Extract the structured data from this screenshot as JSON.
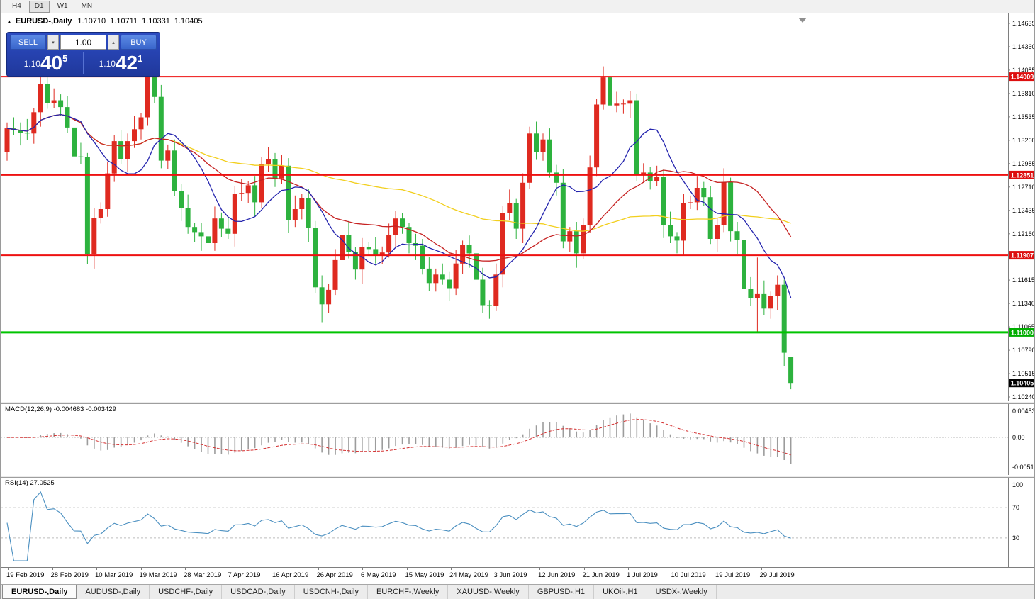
{
  "toolbar": {
    "timeframes": [
      {
        "label": "H4",
        "active": false
      },
      {
        "label": "D1",
        "active": true
      },
      {
        "label": "W1",
        "active": false
      },
      {
        "label": "MN",
        "active": false
      }
    ]
  },
  "chart_header": {
    "collapse_marker": "▲",
    "symbol": "EURUSD-,Daily",
    "open": "1.10710",
    "high": "1.10711",
    "low": "1.10331",
    "close": "1.10405"
  },
  "trade_panel": {
    "sell_label": "SELL",
    "buy_label": "BUY",
    "volume": "1.00",
    "spinner_down": "▾",
    "spinner_up": "▴",
    "sell_price": {
      "prefix": "1.10",
      "big": "40",
      "sup": "5"
    },
    "buy_price": {
      "prefix": "1.10",
      "big": "42",
      "sup": "1"
    }
  },
  "price_axis": {
    "ticks": [
      "1.14635",
      "1.14360",
      "1.14085",
      "1.13810",
      "1.13535",
      "1.13260",
      "1.12985",
      "1.12710",
      "1.12435",
      "1.12160",
      "1.11885",
      "1.11615",
      "1.11340",
      "1.11065",
      "1.10790",
      "1.10515",
      "1.10240"
    ]
  },
  "levels": {
    "hlines": [
      {
        "price": 1.14009,
        "label": "1.14009",
        "color": "#ee1111",
        "badge_bg": "#dd0f0f",
        "text_color": "#ffffff",
        "thickness": 2
      },
      {
        "price": 1.12851,
        "label": "1.12851",
        "color": "#ee1111",
        "badge_bg": "#dd0f0f",
        "text_color": "#ffffff",
        "thickness": 2
      },
      {
        "price": 1.11907,
        "label": "1.11907",
        "color": "#ee1111",
        "badge_bg": "#dd0f0f",
        "text_color": "#ffffff",
        "thickness": 2
      },
      {
        "price": 1.11,
        "label": "1.11000",
        "color": "#00c400",
        "badge_bg": "#00ae00",
        "text_color": "#ffffff",
        "thickness": 3
      }
    ],
    "current_price": {
      "value": 1.10405,
      "label": "1.10405",
      "badge_bg": "#000000",
      "text_color": "#ffffff"
    }
  },
  "chart_data": {
    "type": "candlestick",
    "symbol": "EURUSD",
    "timeframe": "Daily",
    "price_min": 1.1024,
    "price_max": 1.14635,
    "up_color": "#df2a20",
    "down_color": "#2db23e",
    "moving_averages": [
      {
        "period": 60,
        "color": "#f2cf1d"
      },
      {
        "period": 25,
        "color": "#c62222"
      },
      {
        "period": 10,
        "color": "#2424ae"
      }
    ],
    "candles": [
      [
        1.1312,
        1.1347,
        1.1302,
        1.134
      ],
      [
        1.134,
        1.1353,
        1.1332,
        1.1338
      ],
      [
        1.1338,
        1.1347,
        1.132,
        1.1335
      ],
      [
        1.1335,
        1.1351,
        1.1326,
        1.1334
      ],
      [
        1.1334,
        1.1364,
        1.1322,
        1.1359
      ],
      [
        1.1359,
        1.1403,
        1.1342,
        1.1392
      ],
      [
        1.1392,
        1.14,
        1.1363,
        1.137
      ],
      [
        1.137,
        1.1387,
        1.1364,
        1.1373
      ],
      [
        1.1373,
        1.138,
        1.1355,
        1.1365
      ],
      [
        1.1365,
        1.1378,
        1.1335,
        1.1341
      ],
      [
        1.1341,
        1.135,
        1.1292,
        1.1307
      ],
      [
        1.1307,
        1.1323,
        1.1298,
        1.1306
      ],
      [
        1.1306,
        1.1311,
        1.118,
        1.1192
      ],
      [
        1.1192,
        1.1246,
        1.1175,
        1.1235
      ],
      [
        1.1235,
        1.1253,
        1.1228,
        1.1245
      ],
      [
        1.1245,
        1.1301,
        1.1236,
        1.1287
      ],
      [
        1.1287,
        1.1332,
        1.1277,
        1.1325
      ],
      [
        1.1325,
        1.1338,
        1.1298,
        1.1304
      ],
      [
        1.1304,
        1.1334,
        1.1289,
        1.1325
      ],
      [
        1.1325,
        1.1355,
        1.1317,
        1.1339
      ],
      [
        1.1339,
        1.1358,
        1.1327,
        1.1353
      ],
      [
        1.1353,
        1.1448,
        1.1343,
        1.1415
      ],
      [
        1.1415,
        1.1423,
        1.137,
        1.1377
      ],
      [
        1.1377,
        1.1391,
        1.1293,
        1.1302
      ],
      [
        1.1302,
        1.1321,
        1.1292,
        1.1314
      ],
      [
        1.1314,
        1.1327,
        1.126,
        1.1266
      ],
      [
        1.1266,
        1.1275,
        1.1231,
        1.1246
      ],
      [
        1.1246,
        1.1262,
        1.1216,
        1.1224
      ],
      [
        1.1224,
        1.1229,
        1.1206,
        1.1218
      ],
      [
        1.1218,
        1.1229,
        1.1196,
        1.1213
      ],
      [
        1.1213,
        1.1221,
        1.1198,
        1.1205
      ],
      [
        1.1205,
        1.1248,
        1.1196,
        1.1234
      ],
      [
        1.1234,
        1.1241,
        1.1212,
        1.1222
      ],
      [
        1.1222,
        1.1235,
        1.121,
        1.1216
      ],
      [
        1.1216,
        1.1272,
        1.1201,
        1.1263
      ],
      [
        1.1263,
        1.128,
        1.1255,
        1.1264
      ],
      [
        1.1264,
        1.1278,
        1.1252,
        1.1273
      ],
      [
        1.1273,
        1.1284,
        1.1236,
        1.1253
      ],
      [
        1.1253,
        1.1306,
        1.1246,
        1.1298
      ],
      [
        1.1298,
        1.1318,
        1.1289,
        1.1304
      ],
      [
        1.1304,
        1.1311,
        1.1271,
        1.1281
      ],
      [
        1.1281,
        1.1309,
        1.1275,
        1.1296
      ],
      [
        1.1296,
        1.1305,
        1.1217,
        1.1232
      ],
      [
        1.1232,
        1.1261,
        1.1224,
        1.1245
      ],
      [
        1.1245,
        1.1263,
        1.1233,
        1.1258
      ],
      [
        1.1258,
        1.1269,
        1.1206,
        1.1223
      ],
      [
        1.1223,
        1.1231,
        1.1146,
        1.1153
      ],
      [
        1.1153,
        1.1167,
        1.1112,
        1.1133
      ],
      [
        1.1133,
        1.1157,
        1.1123,
        1.115
      ],
      [
        1.115,
        1.1198,
        1.1144,
        1.1185
      ],
      [
        1.1185,
        1.1224,
        1.117,
        1.1215
      ],
      [
        1.1215,
        1.1231,
        1.1187,
        1.1195
      ],
      [
        1.1195,
        1.12,
        1.1162,
        1.1174
      ],
      [
        1.1174,
        1.1211,
        1.1157,
        1.12
      ],
      [
        1.12,
        1.1206,
        1.1191,
        1.1198
      ],
      [
        1.1198,
        1.1212,
        1.1181,
        1.119
      ],
      [
        1.119,
        1.1201,
        1.118,
        1.1194
      ],
      [
        1.1194,
        1.1228,
        1.1188,
        1.1215
      ],
      [
        1.1215,
        1.1243,
        1.12,
        1.1234
      ],
      [
        1.1234,
        1.124,
        1.1216,
        1.1224
      ],
      [
        1.1224,
        1.1229,
        1.1193,
        1.1205
      ],
      [
        1.1205,
        1.1216,
        1.1185,
        1.1202
      ],
      [
        1.1202,
        1.121,
        1.1168,
        1.1175
      ],
      [
        1.1175,
        1.1189,
        1.1149,
        1.1158
      ],
      [
        1.1158,
        1.1175,
        1.1148,
        1.1168
      ],
      [
        1.1168,
        1.1181,
        1.1156,
        1.1162
      ],
      [
        1.1162,
        1.1171,
        1.1137,
        1.1152
      ],
      [
        1.1152,
        1.1197,
        1.1144,
        1.1181
      ],
      [
        1.1181,
        1.1208,
        1.1169,
        1.1203
      ],
      [
        1.1203,
        1.1214,
        1.1176,
        1.1193
      ],
      [
        1.1193,
        1.1201,
        1.1155,
        1.1162
      ],
      [
        1.1162,
        1.1176,
        1.1123,
        1.1132
      ],
      [
        1.1132,
        1.1138,
        1.1116,
        1.1131
      ],
      [
        1.1131,
        1.1181,
        1.1125,
        1.1168
      ],
      [
        1.1168,
        1.1249,
        1.1153,
        1.124
      ],
      [
        1.124,
        1.1268,
        1.1232,
        1.1252
      ],
      [
        1.1252,
        1.1257,
        1.121,
        1.1222
      ],
      [
        1.1222,
        1.1287,
        1.1205,
        1.1276
      ],
      [
        1.1276,
        1.1342,
        1.1269,
        1.1334
      ],
      [
        1.1334,
        1.1348,
        1.1303,
        1.1312
      ],
      [
        1.1312,
        1.1334,
        1.1302,
        1.1327
      ],
      [
        1.1327,
        1.134,
        1.1282,
        1.1288
      ],
      [
        1.1288,
        1.1297,
        1.1261,
        1.1276
      ],
      [
        1.1276,
        1.1292,
        1.1199,
        1.1207
      ],
      [
        1.1207,
        1.1224,
        1.1195,
        1.1219
      ],
      [
        1.1219,
        1.123,
        1.1176,
        1.1193
      ],
      [
        1.1193,
        1.1234,
        1.1186,
        1.1226
      ],
      [
        1.1226,
        1.1308,
        1.1217,
        1.1294
      ],
      [
        1.1294,
        1.1375,
        1.1284,
        1.1368
      ],
      [
        1.1368,
        1.1413,
        1.1362,
        1.14
      ],
      [
        1.14,
        1.1409,
        1.1352,
        1.1367
      ],
      [
        1.1367,
        1.1383,
        1.1359,
        1.1369
      ],
      [
        1.1369,
        1.1374,
        1.1357,
        1.1369
      ],
      [
        1.1369,
        1.1384,
        1.1352,
        1.1373
      ],
      [
        1.1373,
        1.1381,
        1.1278,
        1.1285
      ],
      [
        1.1285,
        1.1299,
        1.1276,
        1.1288
      ],
      [
        1.1288,
        1.1295,
        1.1268,
        1.1278
      ],
      [
        1.1278,
        1.1296,
        1.1272,
        1.1283
      ],
      [
        1.1283,
        1.1292,
        1.1211,
        1.1226
      ],
      [
        1.1226,
        1.1242,
        1.1205,
        1.1213
      ],
      [
        1.1213,
        1.1218,
        1.1193,
        1.1208
      ],
      [
        1.1208,
        1.1263,
        1.1191,
        1.1252
      ],
      [
        1.1252,
        1.1261,
        1.1245,
        1.1253
      ],
      [
        1.1253,
        1.1284,
        1.1244,
        1.127
      ],
      [
        1.127,
        1.1277,
        1.1249,
        1.1259
      ],
      [
        1.1259,
        1.1272,
        1.1204,
        1.121
      ],
      [
        1.121,
        1.1235,
        1.1195,
        1.1226
      ],
      [
        1.1226,
        1.1293,
        1.1218,
        1.1277
      ],
      [
        1.1277,
        1.1282,
        1.1207,
        1.1219
      ],
      [
        1.1219,
        1.123,
        1.1192,
        1.1209
      ],
      [
        1.1209,
        1.1217,
        1.1144,
        1.1151
      ],
      [
        1.1151,
        1.1165,
        1.1131,
        1.114
      ],
      [
        1.114,
        1.1188,
        1.1101,
        1.1145
      ],
      [
        1.1145,
        1.1161,
        1.112,
        1.1128
      ],
      [
        1.1128,
        1.1148,
        1.1116,
        1.1143
      ],
      [
        1.1143,
        1.1167,
        1.1126,
        1.1156
      ],
      [
        1.1156,
        1.1162,
        1.106,
        1.1076
      ],
      [
        1.1071,
        1.10711,
        1.10331,
        1.10405
      ]
    ],
    "x_labels": [
      "19 Feb 2019",
      "28 Feb 2019",
      "10 Mar 2019",
      "19 Mar 2019",
      "28 Mar 2019",
      "7 Apr 2019",
      "16 Apr 2019",
      "26 Apr 2019",
      "6 May 2019",
      "15 May 2019",
      "24 May 2019",
      "3 Jun 2019",
      "12 Jun 2019",
      "21 Jun 2019",
      "1 Jul 2019",
      "10 Jul 2019",
      "19 Jul 2019",
      "29 Jul 2019"
    ]
  },
  "macd_panel": {
    "title": "MACD(12,26,9) -0.004683 -0.003429",
    "fast": 12,
    "slow": 26,
    "signal": 9,
    "scale_top": "0.004532",
    "scale_zero": "0.00",
    "scale_bottom": "-0.005122",
    "histogram_color": "#9c9c9c",
    "signal_color": "#d43030"
  },
  "rsi_panel": {
    "title": "RSI(14) 27.0525",
    "period": 14,
    "levels": [
      70,
      30
    ],
    "scale_labels": [
      "100",
      "70",
      "30"
    ],
    "line_color": "#4a8fc0",
    "level_color": "#bcbcbc"
  },
  "tabs": [
    {
      "label": "EURUSD-,Daily",
      "active": true
    },
    {
      "label": "AUDUSD-,Daily",
      "active": false
    },
    {
      "label": "USDCHF-,Daily",
      "active": false
    },
    {
      "label": "USDCAD-,Daily",
      "active": false
    },
    {
      "label": "USDCNH-,Daily",
      "active": false
    },
    {
      "label": "EURCHF-,Weekly",
      "active": false
    },
    {
      "label": "XAUUSD-,Weekly",
      "active": false
    },
    {
      "label": "GBPUSD-,H1",
      "active": false
    },
    {
      "label": "UKOil-,H1",
      "active": false
    },
    {
      "label": "USDX-,Weekly",
      "active": false
    }
  ]
}
